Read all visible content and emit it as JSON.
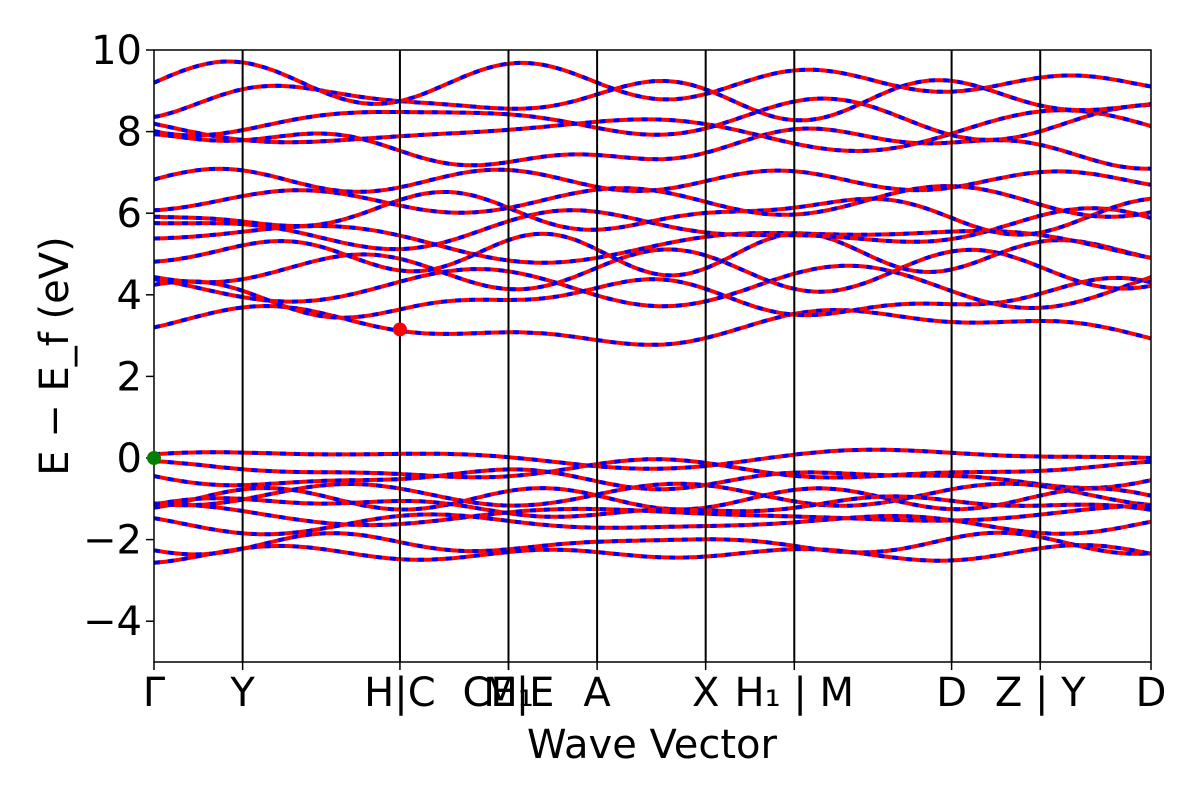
{
  "chart_data": {
    "type": "line",
    "title": "",
    "xlabel": "Wave Vector",
    "ylabel": "E − E_f (eV)",
    "ylim": [
      -5,
      10
    ],
    "yticks": [
      -4,
      -2,
      0,
      2,
      4,
      6,
      8,
      10
    ],
    "ytick_labels": [
      "−4",
      "−2",
      "0",
      "2",
      "4",
      "6",
      "8",
      "10"
    ],
    "grid": false,
    "legend": "none",
    "kpath": [
      {
        "label": "Γ",
        "x": 0.0
      },
      {
        "label": "Y",
        "x": 0.4
      },
      {
        "label": "H|C",
        "x": 1.11
      },
      {
        "label": "CE|E",
        "x": 1.6
      },
      {
        "label": "M₁",
        "x": 1.6
      },
      {
        "label": "A",
        "x": 2.0
      },
      {
        "label": "X",
        "x": 2.49
      },
      {
        "label": "H₁ | M",
        "x": 2.89
      },
      {
        "label": "D",
        "x": 3.6
      },
      {
        "label": "Z | Y",
        "x": 4.0
      },
      {
        "label": "D",
        "x": 4.5
      }
    ],
    "xlim": [
      0,
      4.5
    ],
    "vlines": [
      0.4,
      1.11,
      1.6,
      2.0,
      2.49,
      2.89,
      3.6,
      4.0
    ],
    "series": [
      {
        "style": "spin-up solid",
        "color": "#ff0000"
      },
      {
        "style": "spin-down dashed",
        "color": "#0000ff"
      }
    ],
    "band_guides": {
      "valence": [
        0.0,
        -0.3,
        -0.5,
        -0.9,
        -1.0,
        -1.2,
        -1.4,
        -1.6,
        -2.1,
        -2.35
      ],
      "conduction": [
        3.2,
        3.9,
        4.2,
        4.6,
        5.0,
        5.3,
        5.6,
        6.0,
        6.3,
        6.8,
        7.6,
        8.0,
        8.3,
        8.8,
        9.2
      ]
    },
    "vbm": {
      "x": 0.0,
      "y": 0.0,
      "color": "#008000"
    },
    "cbm": {
      "x": 1.11,
      "y": 3.15,
      "color": "#ff0000"
    }
  }
}
